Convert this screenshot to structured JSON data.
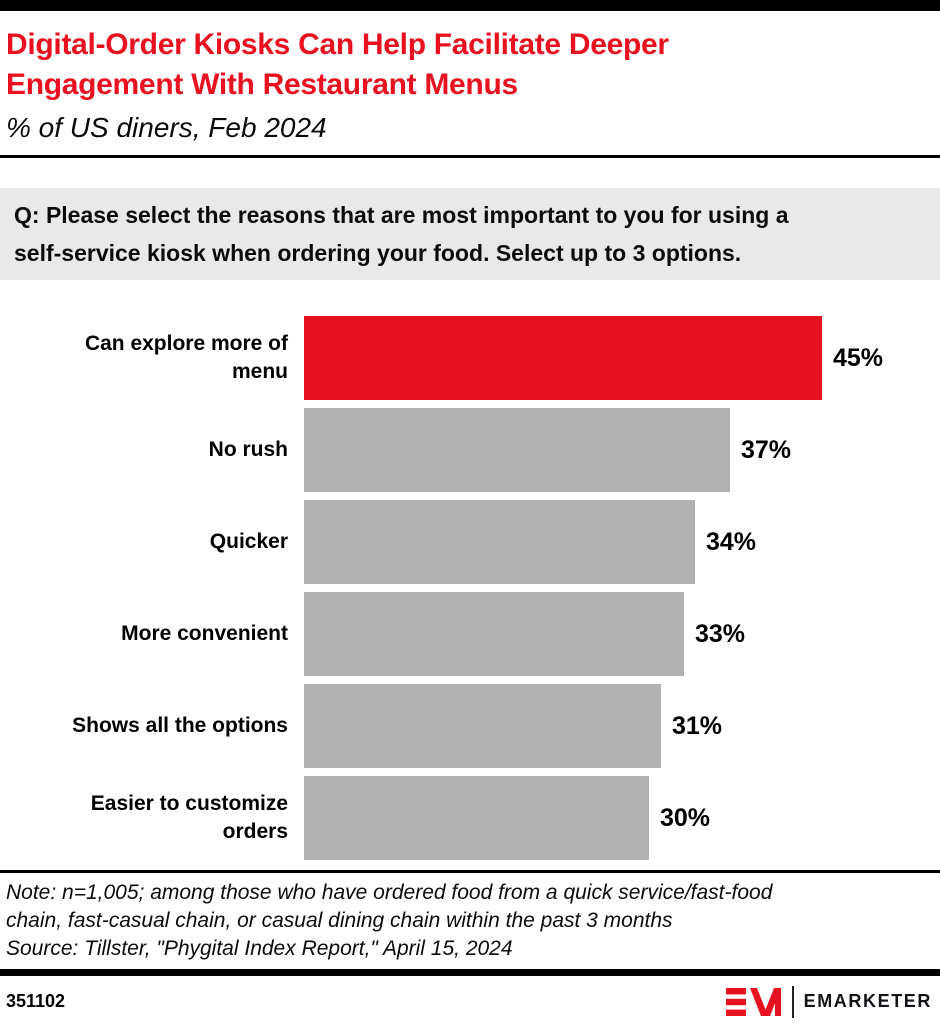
{
  "header": {
    "title": "Digital-Order Kiosks Can Help Facilitate Deeper Engagement With Restaurant Menus",
    "title_lines": [
      "Digital-Order Kiosks Can Help Facilitate Deeper",
      "Engagement With Restaurant Menus"
    ],
    "subtitle": "% of US diners, Feb 2024"
  },
  "question": {
    "text": "Q: Please select the reasons that are most important to you for using a self-service kiosk when ordering your food. Select up to 3 options.",
    "lines": [
      "Q: Please select the reasons that are most important to you for using a",
      "self-service kiosk when ordering your food. Select up to 3 options."
    ]
  },
  "chart_data": {
    "type": "bar",
    "orientation": "horizontal",
    "title": "Digital-Order Kiosks Can Help Facilitate Deeper Engagement With Restaurant Menus",
    "subtitle": "% of US diners, Feb 2024",
    "categories": [
      "Can explore more of menu",
      "No rush",
      "Quicker",
      "More convenient",
      "Shows all the options",
      "Easier to customize orders"
    ],
    "category_lines": [
      [
        "Can explore more of",
        "menu"
      ],
      [
        "No rush"
      ],
      [
        "Quicker"
      ],
      [
        "More convenient"
      ],
      [
        "Shows all the options"
      ],
      [
        "Easier to customize",
        "orders"
      ]
    ],
    "values": [
      45,
      37,
      34,
      33,
      31,
      30
    ],
    "value_labels": [
      "45%",
      "37%",
      "34%",
      "33%",
      "31%",
      "30%"
    ],
    "unit": "%",
    "xlabel": "",
    "ylabel": "",
    "xlim": [
      0,
      55
    ],
    "grid": false,
    "legend": false,
    "bar_colors": [
      "#e8111f",
      "#b1b1b1",
      "#b1b1b1",
      "#b1b1b1",
      "#b1b1b1",
      "#b1b1b1"
    ],
    "highlight_color": "#e8111f",
    "default_color": "#b1b1b1"
  },
  "notes": {
    "note": "Note: n=1,005; among those who have ordered food from a quick service/fast-food chain, fast-casual chain, or casual dining chain within the past 3 months",
    "note_lines": [
      "Note: n=1,005; among those who have ordered food from a quick service/fast-food",
      "chain, fast-casual chain, or casual dining chain within the past 3 months"
    ],
    "source": "Source: Tillster, \"Phygital Index Report,\" April 15, 2024"
  },
  "footer": {
    "chart_id": "351102",
    "brand": "EMARKETER"
  },
  "colors": {
    "accent_red": "#e8111f",
    "bar_gray": "#b1b1b1",
    "question_bg": "#e9e9e9",
    "bar_black": "#000000"
  }
}
